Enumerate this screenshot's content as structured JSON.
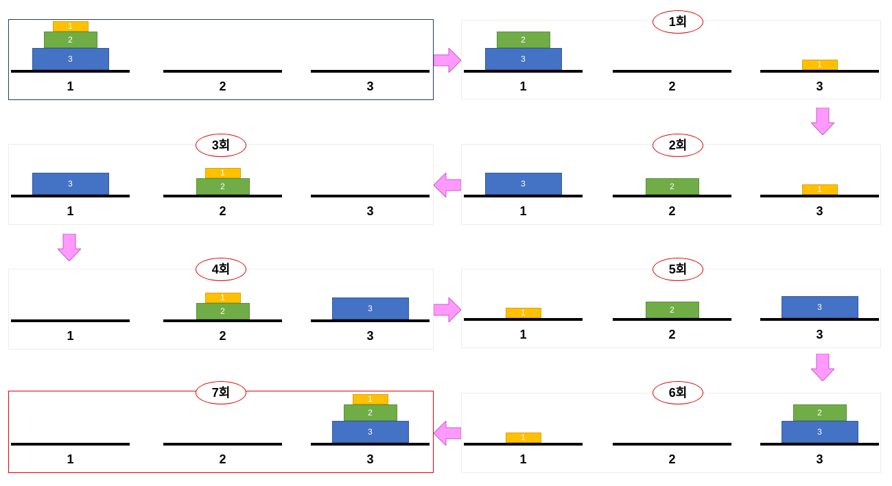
{
  "peg_labels": [
    "1",
    "2",
    "3"
  ],
  "disk_labels": [
    "1",
    "2",
    "3"
  ],
  "step_labels": [
    "1회",
    "2회",
    "3회",
    "4회",
    "5회",
    "6회",
    "7회"
  ],
  "colors": {
    "disk_1": "#ffc000",
    "disk_2": "#70ad47",
    "disk_3": "#4472c4",
    "arrow_fill": "#ff99ff",
    "arrow_stroke": "#c060c0",
    "initial_border": "#203864",
    "final_border": "#e00000",
    "badge_border": "#e00000"
  },
  "states": [
    {
      "step": null,
      "pegs": [
        [
          3,
          2,
          1
        ],
        [],
        []
      ]
    },
    {
      "step": "1회",
      "pegs": [
        [
          3,
          2
        ],
        [],
        [
          1
        ]
      ]
    },
    {
      "step": "2회",
      "pegs": [
        [
          3
        ],
        [
          2
        ],
        [
          1
        ]
      ]
    },
    {
      "step": "3회",
      "pegs": [
        [
          3
        ],
        [
          2,
          1
        ],
        []
      ]
    },
    {
      "step": "4회",
      "pegs": [
        [],
        [
          2,
          1
        ],
        [
          3
        ]
      ]
    },
    {
      "step": "5회",
      "pegs": [
        [
          1
        ],
        [
          2
        ],
        [
          3
        ]
      ]
    },
    {
      "step": "6회",
      "pegs": [
        [
          1
        ],
        [],
        [
          3,
          2
        ]
      ]
    },
    {
      "step": "7회",
      "pegs": [
        [],
        [],
        [
          3,
          2,
          1
        ]
      ]
    }
  ],
  "arrows": [
    "right",
    "down",
    "left",
    "down",
    "right",
    "down",
    "left"
  ]
}
